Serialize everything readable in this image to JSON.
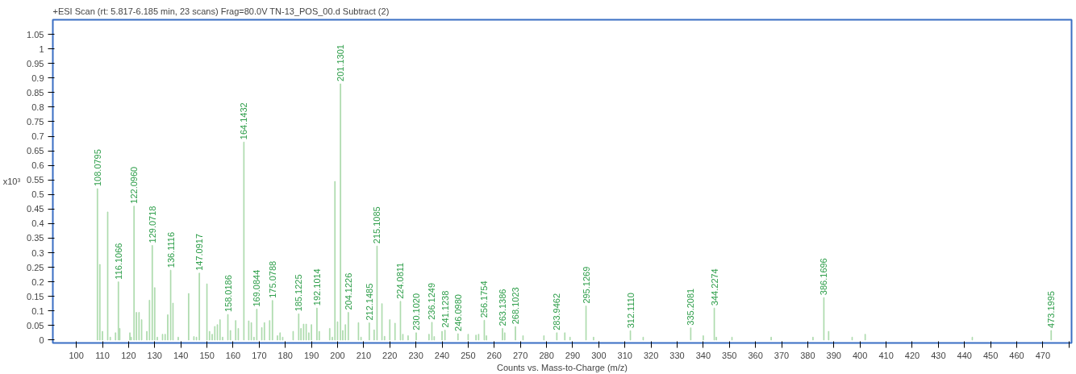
{
  "chart_data": {
    "type": "bar",
    "title": "+ESI Scan (rt: 5.817-6.185 min, 23 scans) Frag=80.0V TN-13_POS_00.d  Subtract (2)",
    "xlabel": "Counts vs. Mass-to-Charge (m/z)",
    "ylabel": "x10³",
    "x": [
      108.0795,
      109,
      110,
      112,
      113,
      115,
      116.1066,
      116.6,
      120.5,
      121,
      122.096,
      123,
      124,
      125,
      127,
      128,
      129.0718,
      130,
      131,
      133,
      134,
      135,
      136.1116,
      137,
      139,
      143,
      145,
      146,
      147.0917,
      150,
      151,
      152,
      153,
      154,
      155,
      156,
      158.0186,
      159,
      161,
      162,
      164.1432,
      166,
      167,
      168,
      169.0844,
      171,
      172,
      174,
      175.0788,
      177,
      178,
      179,
      183,
      185.1225,
      186,
      187,
      188,
      189,
      190,
      192.1014,
      193,
      197,
      198,
      199,
      200,
      201.1301,
      202,
      203,
      204.1226,
      208,
      209,
      212.1485,
      214,
      215.1085,
      217,
      218,
      220,
      222,
      224.0811,
      225,
      227,
      230.102,
      235,
      236.1249,
      237,
      240,
      241.1238,
      246.098,
      250,
      253,
      254,
      256.1754,
      257,
      263.1386,
      264,
      268.1023,
      271,
      279,
      283.9462,
      287,
      289,
      295.1269,
      298,
      312.111,
      317,
      335.2081,
      340,
      344.2274,
      345,
      351,
      366,
      382,
      386.1696,
      388,
      397,
      402,
      443,
      473.1995
    ],
    "values": [
      0.52,
      0.26,
      0.03,
      0.44,
      0.01,
      0.025,
      0.2,
      0.04,
      0.025,
      0.01,
      0.46,
      0.095,
      0.095,
      0.07,
      0.03,
      0.137,
      0.325,
      0.18,
      0.01,
      0.02,
      0.02,
      0.087,
      0.24,
      0.127,
      0.01,
      0.16,
      0.012,
      0.01,
      0.23,
      0.193,
      0.03,
      0.02,
      0.047,
      0.053,
      0.07,
      0.01,
      0.088,
      0.033,
      0.067,
      0.04,
      0.68,
      0.066,
      0.06,
      0.01,
      0.106,
      0.043,
      0.06,
      0.067,
      0.136,
      0.015,
      0.025,
      0.01,
      0.03,
      0.09,
      0.04,
      0.055,
      0.055,
      0.025,
      0.053,
      0.11,
      0.03,
      0.04,
      0.01,
      0.545,
      0.063,
      0.88,
      0.033,
      0.053,
      0.095,
      0.06,
      0.01,
      0.059,
      0.035,
      0.323,
      0.125,
      0.013,
      0.07,
      0.058,
      0.133,
      0.02,
      0.015,
      0.025,
      0.02,
      0.061,
      0.012,
      0.03,
      0.034,
      0.022,
      0.02,
      0.017,
      0.02,
      0.068,
      0.015,
      0.04,
      0.025,
      0.046,
      0.015,
      0.015,
      0.025,
      0.025,
      0.01,
      0.117,
      0.01,
      0.032,
      0.01,
      0.042,
      0.015,
      0.11,
      0.01,
      0.01,
      0.01,
      0.01,
      0.146,
      0.03,
      0.01,
      0.02,
      0.01,
      0.033
    ],
    "annotations": [
      {
        "text": "108.0795",
        "x": 108.0795,
        "y": 0.52
      },
      {
        "text": "116.1066",
        "x": 116.1066,
        "y": 0.2
      },
      {
        "text": "122.0960",
        "x": 122.096,
        "y": 0.46
      },
      {
        "text": "129.0718",
        "x": 129.0718,
        "y": 0.325
      },
      {
        "text": "136.1116",
        "x": 136.1116,
        "y": 0.24
      },
      {
        "text": "147.0917",
        "x": 147.0917,
        "y": 0.23
      },
      {
        "text": "158.0186",
        "x": 158.0186,
        "y": 0.088
      },
      {
        "text": "164.1432",
        "x": 164.1432,
        "y": 0.68
      },
      {
        "text": "169.0844",
        "x": 169.0844,
        "y": 0.106
      },
      {
        "text": "175.0788",
        "x": 175.0788,
        "y": 0.136
      },
      {
        "text": "185.1225",
        "x": 185.1225,
        "y": 0.09
      },
      {
        "text": "192.1014",
        "x": 192.1014,
        "y": 0.11
      },
      {
        "text": "201.1301",
        "x": 201.1301,
        "y": 0.88
      },
      {
        "text": "204.1226",
        "x": 204.1226,
        "y": 0.095
      },
      {
        "text": "212.1485",
        "x": 212.1485,
        "y": 0.059
      },
      {
        "text": "215.1085",
        "x": 215.1085,
        "y": 0.323
      },
      {
        "text": "224.0811",
        "x": 224.0811,
        "y": 0.133
      },
      {
        "text": "230.1020",
        "x": 230.102,
        "y": 0.025
      },
      {
        "text": "236.1249",
        "x": 236.1249,
        "y": 0.061
      },
      {
        "text": "241.1238",
        "x": 241.1238,
        "y": 0.034
      },
      {
        "text": "246.0980",
        "x": 246.098,
        "y": 0.022
      },
      {
        "text": "256.1754",
        "x": 256.1754,
        "y": 0.068
      },
      {
        "text": "263.1386",
        "x": 263.1386,
        "y": 0.04
      },
      {
        "text": "268.1023",
        "x": 268.1023,
        "y": 0.046
      },
      {
        "text": "283.9462",
        "x": 283.9462,
        "y": 0.025
      },
      {
        "text": "295.1269",
        "x": 295.1269,
        "y": 0.117
      },
      {
        "text": "312.1110",
        "x": 312.111,
        "y": 0.032
      },
      {
        "text": "335.2081",
        "x": 335.2081,
        "y": 0.042
      },
      {
        "text": "344.2274",
        "x": 344.2274,
        "y": 0.11
      },
      {
        "text": "386.1696",
        "x": 386.1696,
        "y": 0.146
      },
      {
        "text": "473.1995",
        "x": 473.1995,
        "y": 0.033
      }
    ],
    "color": "#a9d9a9",
    "xlim": [
      91,
      481
    ],
    "xticks": [
      100,
      110,
      120,
      130,
      140,
      150,
      160,
      170,
      180,
      190,
      200,
      210,
      220,
      230,
      240,
      250,
      260,
      270,
      280,
      290,
      300,
      310,
      320,
      330,
      340,
      350,
      360,
      370,
      380,
      390,
      400,
      410,
      420,
      430,
      440,
      450,
      460,
      470,
      {
        "value": 480,
        "label": null
      }
    ],
    "ylim": [
      -0.01,
      1.1
    ],
    "yticks": [
      0,
      0.05,
      0.1,
      0.15,
      0.2,
      0.25,
      0.3,
      0.35,
      0.4,
      0.45,
      0.5,
      0.55,
      0.6,
      0.65,
      0.7,
      0.75,
      0.8,
      0.85,
      0.9,
      0.95,
      1,
      1.05
    ],
    "grid": false
  }
}
